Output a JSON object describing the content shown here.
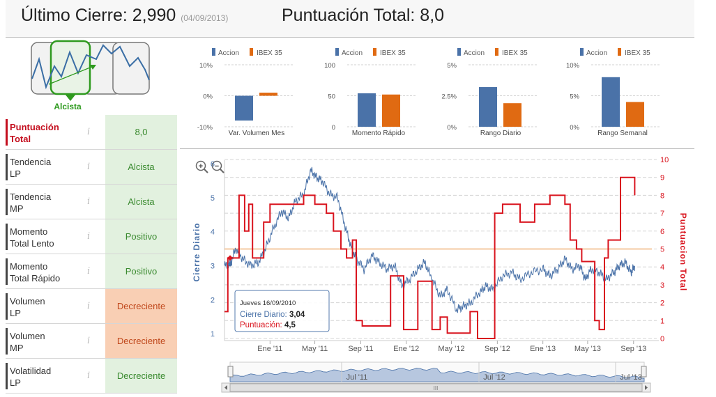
{
  "header": {
    "last_close_label": "Último Cierre: ",
    "last_close_value": "2,990",
    "last_close_date": "(04/09/2013)",
    "total_score_label": "Puntuación Total: ",
    "total_score_value": "8,0"
  },
  "trend": {
    "label": "Alcista",
    "color": "#2e9a1e"
  },
  "left_rows": [
    {
      "label": "Puntuación\nTotal",
      "value": "8,0",
      "status": "green"
    },
    {
      "label": "Tendencia\nLP",
      "value": "Alcista",
      "status": "green"
    },
    {
      "label": "Tendencia\nMP",
      "value": "Alcista",
      "status": "green"
    },
    {
      "label": "Momento\nTotal Lento",
      "value": "Positivo",
      "status": "green"
    },
    {
      "label": "Momento\nTotal Rápido",
      "value": "Positivo",
      "status": "green"
    },
    {
      "label": "Volumen\nLP",
      "value": "Decreciente",
      "status": "orange"
    },
    {
      "label": "Volumen\nMP",
      "value": "Decreciente",
      "status": "orange"
    },
    {
      "label": "Volatilidad\nLP",
      "value": "Decreciente",
      "status": "green"
    }
  ],
  "info_icon": "i",
  "colors": {
    "accion": "#4a72a8",
    "ibex": "#e06a12",
    "price": "#4a72a8",
    "score": "#d9141e",
    "ref_line": "#f0b27a"
  },
  "chart_data": [
    {
      "type": "bar",
      "xlabel": "Var. Volumen Mes",
      "legend": [
        "Accion",
        "IBEX 35"
      ],
      "yticks": [
        "10%",
        "0%",
        "-10%"
      ],
      "ylim": [
        -10,
        10
      ],
      "values": [
        -8,
        1
      ]
    },
    {
      "type": "bar",
      "xlabel": "Momento Rápido",
      "legend": [
        "Accion",
        "IBEX 35"
      ],
      "yticks": [
        "100",
        "50",
        "0"
      ],
      "ylim": [
        0,
        100
      ],
      "values": [
        54,
        52
      ]
    },
    {
      "type": "bar",
      "xlabel": "Rango Diario",
      "legend": [
        "Accion",
        "IBEX 35"
      ],
      "yticks": [
        "5%",
        "2.5%",
        "0%"
      ],
      "ylim": [
        0,
        5
      ],
      "values": [
        3.2,
        1.9
      ]
    },
    {
      "type": "bar",
      "xlabel": "Rango Semanal",
      "legend": [
        "Accion",
        "IBEX 35"
      ],
      "yticks": [
        "10%",
        "5%",
        "0%"
      ],
      "ylim": [
        0,
        10
      ],
      "values": [
        8,
        4
      ]
    },
    {
      "type": "line",
      "ylabel_left": "Cierre Diario",
      "ylabel_right": "Puntuacion Total",
      "y_left_ticks": [
        "6",
        "5",
        "4",
        "3",
        "2",
        "1"
      ],
      "y_right_ticks": [
        "10",
        "9",
        "8",
        "7",
        "6",
        "5",
        "4",
        "3",
        "2",
        "1",
        "0"
      ],
      "ylim_left": [
        1,
        6
      ],
      "ylim_right": [
        0,
        10
      ],
      "xlim": [
        "2010-09-01",
        "2013-10-20"
      ],
      "x_ticks": [
        {
          "label": "Ene '11",
          "date": "2011-01-01"
        },
        {
          "label": "May '11",
          "date": "2011-05-01"
        },
        {
          "label": "Sep '11",
          "date": "2011-09-01"
        },
        {
          "label": "Ene '12",
          "date": "2012-01-01"
        },
        {
          "label": "May '12",
          "date": "2012-05-01"
        },
        {
          "label": "Sep '12",
          "date": "2012-09-01"
        },
        {
          "label": "Ene '13",
          "date": "2013-01-01"
        },
        {
          "label": "May '13",
          "date": "2013-05-01"
        },
        {
          "label": "Sep '13",
          "date": "2013-09-01"
        }
      ],
      "reference_score": 5,
      "price_series": {
        "name": "Cierre Diario",
        "points": [
          [
            "2010-09-01",
            3.0
          ],
          [
            "2010-09-16",
            3.04
          ],
          [
            "2010-10-01",
            3.5
          ],
          [
            "2010-10-20",
            3.2
          ],
          [
            "2010-11-10",
            3.0
          ],
          [
            "2010-12-01",
            3.1
          ],
          [
            "2010-12-20",
            3.5
          ],
          [
            "2011-01-10",
            4.1
          ],
          [
            "2011-02-01",
            4.6
          ],
          [
            "2011-02-20",
            4.4
          ],
          [
            "2011-03-10",
            4.9
          ],
          [
            "2011-04-01",
            5.1
          ],
          [
            "2011-04-20",
            5.8
          ],
          [
            "2011-05-05",
            5.6
          ],
          [
            "2011-05-20",
            5.5
          ],
          [
            "2011-06-10",
            5.1
          ],
          [
            "2011-07-01",
            5.0
          ],
          [
            "2011-07-20",
            4.2
          ],
          [
            "2011-08-05",
            3.6
          ],
          [
            "2011-08-20",
            3.2
          ],
          [
            "2011-09-10",
            2.9
          ],
          [
            "2011-10-01",
            3.3
          ],
          [
            "2011-10-20",
            3.1
          ],
          [
            "2011-11-10",
            2.9
          ],
          [
            "2011-12-01",
            3.0
          ],
          [
            "2011-12-20",
            2.4
          ],
          [
            "2012-01-10",
            2.6
          ],
          [
            "2012-02-01",
            2.9
          ],
          [
            "2012-02-20",
            3.1
          ],
          [
            "2012-03-10",
            2.6
          ],
          [
            "2012-04-01",
            2.1
          ],
          [
            "2012-04-20",
            2.3
          ],
          [
            "2012-05-15",
            1.7
          ],
          [
            "2012-06-01",
            1.8
          ],
          [
            "2012-06-20",
            1.9
          ],
          [
            "2012-07-15",
            2.2
          ],
          [
            "2012-08-01",
            2.4
          ],
          [
            "2012-08-20",
            2.3
          ],
          [
            "2012-09-15",
            2.7
          ],
          [
            "2012-10-10",
            2.8
          ],
          [
            "2012-11-01",
            2.6
          ],
          [
            "2012-12-01",
            2.8
          ],
          [
            "2013-01-01",
            2.9
          ],
          [
            "2013-01-20",
            2.7
          ],
          [
            "2013-02-10",
            2.9
          ],
          [
            "2013-03-01",
            3.2
          ],
          [
            "2013-03-20",
            2.9
          ],
          [
            "2013-04-10",
            3.0
          ],
          [
            "2013-04-25",
            2.6
          ],
          [
            "2013-05-10",
            2.9
          ],
          [
            "2013-06-01",
            2.8
          ],
          [
            "2013-06-20",
            2.6
          ],
          [
            "2013-07-10",
            2.8
          ],
          [
            "2013-07-25",
            3.0
          ],
          [
            "2013-08-10",
            3.1
          ],
          [
            "2013-08-25",
            2.8
          ],
          [
            "2013-09-04",
            2.99
          ]
        ]
      },
      "score_series": {
        "name": "Puntuación",
        "points": [
          [
            "2010-09-01",
            1.5
          ],
          [
            "2010-09-10",
            4.5
          ],
          [
            "2010-10-01",
            4.5
          ],
          [
            "2010-10-10",
            8
          ],
          [
            "2010-10-25",
            6
          ],
          [
            "2010-11-05",
            7.5
          ],
          [
            "2010-11-15",
            4.5
          ],
          [
            "2010-12-01",
            4.5
          ],
          [
            "2010-12-15",
            6.5
          ],
          [
            "2011-01-01",
            7.5
          ],
          [
            "2011-02-01",
            7.5
          ],
          [
            "2011-03-01",
            7.5
          ],
          [
            "2011-04-01",
            8
          ],
          [
            "2011-05-01",
            7.5
          ],
          [
            "2011-06-01",
            7
          ],
          [
            "2011-06-20",
            6
          ],
          [
            "2011-07-10",
            5
          ],
          [
            "2011-07-25",
            4.5
          ],
          [
            "2011-08-10",
            5.5
          ],
          [
            "2011-08-20",
            1
          ],
          [
            "2011-09-05",
            0.7
          ],
          [
            "2011-10-01",
            0.7
          ],
          [
            "2011-10-15",
            0.7
          ],
          [
            "2011-11-01",
            0.7
          ],
          [
            "2011-11-20",
            3.5
          ],
          [
            "2011-12-10",
            3.5
          ],
          [
            "2011-12-25",
            0.5
          ],
          [
            "2012-01-10",
            0.5
          ],
          [
            "2012-02-01",
            3.2
          ],
          [
            "2012-02-20",
            3.2
          ],
          [
            "2012-03-10",
            0.5
          ],
          [
            "2012-04-01",
            1.2
          ],
          [
            "2012-04-20",
            0.3
          ],
          [
            "2012-05-20",
            0.3
          ],
          [
            "2012-06-20",
            1.5
          ],
          [
            "2012-07-10",
            0
          ],
          [
            "2012-08-20",
            0
          ],
          [
            "2012-08-25",
            7
          ],
          [
            "2012-09-15",
            7.5
          ],
          [
            "2012-10-15",
            7.5
          ],
          [
            "2012-11-01",
            6.5
          ],
          [
            "2012-11-20",
            6.5
          ],
          [
            "2012-12-10",
            7.5
          ],
          [
            "2013-01-01",
            7.5
          ],
          [
            "2013-01-20",
            8
          ],
          [
            "2013-02-10",
            8
          ],
          [
            "2013-03-01",
            7.5
          ],
          [
            "2013-03-15",
            5.5
          ],
          [
            "2013-04-01",
            5
          ],
          [
            "2013-04-15",
            4.3
          ],
          [
            "2013-05-10",
            4.3
          ],
          [
            "2013-05-20",
            1
          ],
          [
            "2013-06-01",
            0.5
          ],
          [
            "2013-06-15",
            4.5
          ],
          [
            "2013-06-25",
            5.5
          ],
          [
            "2013-07-15",
            5.5
          ],
          [
            "2013-07-28",
            9
          ],
          [
            "2013-08-20",
            9
          ],
          [
            "2013-09-04",
            8
          ]
        ]
      },
      "tooltip": {
        "date": "Jueves 16/09/2010",
        "price_label": "Cierre Diario: ",
        "price_value": "3,04",
        "score_label": "Puntuación: ",
        "score_value": "4,5"
      },
      "navigator": {
        "labels": [
          "Jul '11",
          "Jul '12",
          "Jul '13"
        ],
        "grip": "III"
      }
    }
  ]
}
